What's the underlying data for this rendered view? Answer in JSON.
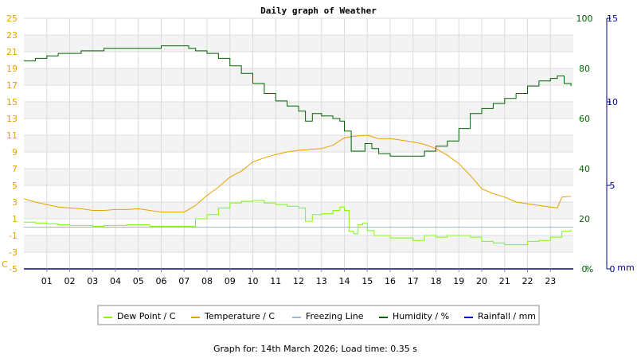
{
  "chart_data": {
    "type": "line",
    "title": "Daily graph of Weather",
    "x_ticks": [
      "01",
      "02",
      "03",
      "04",
      "05",
      "06",
      "07",
      "08",
      "09",
      "10",
      "11",
      "12",
      "13",
      "14",
      "15",
      "16",
      "17",
      "18",
      "19",
      "20",
      "21",
      "22",
      "23"
    ],
    "x_range": [
      0,
      24
    ],
    "left_axis": {
      "label": "C",
      "range": [
        -5,
        25
      ],
      "ticks": [
        "25",
        "23",
        "21",
        "19",
        "17",
        "15",
        "13",
        "11",
        "9",
        "7",
        "5",
        "3",
        "1",
        "-1",
        "-3",
        "-5"
      ],
      "color": "#e8a000"
    },
    "right_axis_humidity": {
      "label": "%",
      "range": [
        0,
        100
      ],
      "ticks": [
        "100",
        "80",
        "60",
        "40",
        "20",
        "0"
      ],
      "color": "#006400"
    },
    "right_axis_rain": {
      "label": "mm",
      "range": [
        0,
        15
      ],
      "ticks": [
        "15",
        "10",
        "5",
        "0"
      ],
      "color": "#00008b"
    },
    "grid": true,
    "legend_position": "bottom",
    "series": [
      {
        "name": "Dew Point / C",
        "axis": "left",
        "color": "#7cfc00",
        "points": [
          [
            0,
            0.6
          ],
          [
            0.5,
            0.5
          ],
          [
            1,
            0.4
          ],
          [
            1.5,
            0.3
          ],
          [
            2,
            0.2
          ],
          [
            2.5,
            0.2
          ],
          [
            3,
            0.1
          ],
          [
            3.5,
            0.2
          ],
          [
            4,
            0.2
          ],
          [
            4.5,
            0.3
          ],
          [
            5,
            0.3
          ],
          [
            5.5,
            0.1
          ],
          [
            6,
            0.1
          ],
          [
            6.5,
            0.1
          ],
          [
            7,
            0.1
          ],
          [
            7.5,
            1.0
          ],
          [
            8,
            1.5
          ],
          [
            8.5,
            2.3
          ],
          [
            9,
            2.9
          ],
          [
            9.5,
            3.1
          ],
          [
            10,
            3.2
          ],
          [
            10.5,
            2.9
          ],
          [
            11,
            2.7
          ],
          [
            11.5,
            2.5
          ],
          [
            12,
            2.3
          ],
          [
            12.3,
            0.7
          ],
          [
            12.6,
            1.5
          ],
          [
            13,
            1.6
          ],
          [
            13.5,
            2.0
          ],
          [
            13.8,
            2.4
          ],
          [
            14,
            2.0
          ],
          [
            14.2,
            -0.5
          ],
          [
            14.4,
            -0.8
          ],
          [
            14.6,
            0.3
          ],
          [
            14.8,
            0.5
          ],
          [
            15,
            -0.4
          ],
          [
            15.3,
            -1.0
          ],
          [
            15.6,
            -1.0
          ],
          [
            16,
            -1.3
          ],
          [
            16.5,
            -1.3
          ],
          [
            17,
            -1.6
          ],
          [
            17.5,
            -1.0
          ],
          [
            18,
            -1.2
          ],
          [
            18.5,
            -1.0
          ],
          [
            19,
            -1.0
          ],
          [
            19.5,
            -1.2
          ],
          [
            20,
            -1.7
          ],
          [
            20.5,
            -1.9
          ],
          [
            21,
            -2.1
          ],
          [
            21.5,
            -2.1
          ],
          [
            22,
            -1.7
          ],
          [
            22.5,
            -1.6
          ],
          [
            23,
            -1.2
          ],
          [
            23.5,
            -0.5
          ],
          [
            23.9,
            -0.3
          ]
        ]
      },
      {
        "name": "Temperature / C",
        "axis": "left",
        "color": "#e8a000",
        "points": [
          [
            0,
            3.4
          ],
          [
            0.5,
            3.0
          ],
          [
            1,
            2.7
          ],
          [
            1.5,
            2.4
          ],
          [
            2,
            2.3
          ],
          [
            2.5,
            2.2
          ],
          [
            3,
            2.0
          ],
          [
            3.5,
            2.0
          ],
          [
            4,
            2.1
          ],
          [
            4.5,
            2.1
          ],
          [
            5,
            2.2
          ],
          [
            5.5,
            2.0
          ],
          [
            6,
            1.8
          ],
          [
            6.5,
            1.8
          ],
          [
            7,
            1.8
          ],
          [
            7.5,
            2.6
          ],
          [
            8,
            3.8
          ],
          [
            8.5,
            4.8
          ],
          [
            9,
            6.0
          ],
          [
            9.5,
            6.7
          ],
          [
            10,
            7.8
          ],
          [
            10.5,
            8.3
          ],
          [
            11,
            8.7
          ],
          [
            11.5,
            9.0
          ],
          [
            12,
            9.2
          ],
          [
            12.5,
            9.3
          ],
          [
            13,
            9.4
          ],
          [
            13.5,
            9.8
          ],
          [
            14,
            10.7
          ],
          [
            14.5,
            10.9
          ],
          [
            15,
            11.0
          ],
          [
            15.5,
            10.6
          ],
          [
            16,
            10.6
          ],
          [
            16.5,
            10.4
          ],
          [
            17,
            10.2
          ],
          [
            17.5,
            9.9
          ],
          [
            18,
            9.4
          ],
          [
            18.5,
            8.6
          ],
          [
            19,
            7.6
          ],
          [
            19.5,
            6.2
          ],
          [
            20,
            4.6
          ],
          [
            20.5,
            4.0
          ],
          [
            21,
            3.6
          ],
          [
            21.5,
            3.0
          ],
          [
            22,
            2.8
          ],
          [
            22.5,
            2.6
          ],
          [
            23,
            2.4
          ],
          [
            23.3,
            2.3
          ],
          [
            23.5,
            3.6
          ],
          [
            23.9,
            3.7
          ]
        ]
      },
      {
        "name": "Freezing Line",
        "axis": "left",
        "color": "#9fb6cd",
        "points": [
          [
            0,
            0
          ],
          [
            24,
            0
          ]
        ]
      },
      {
        "name": "Humidity / %",
        "axis": "right_humidity",
        "color": "#006400",
        "points": [
          [
            0,
            83
          ],
          [
            0.5,
            84
          ],
          [
            1,
            85
          ],
          [
            1.5,
            86
          ],
          [
            2,
            86
          ],
          [
            2.5,
            87
          ],
          [
            3,
            87
          ],
          [
            3.5,
            88
          ],
          [
            4,
            88
          ],
          [
            4.5,
            88
          ],
          [
            5,
            88
          ],
          [
            5.5,
            88
          ],
          [
            6,
            89
          ],
          [
            6.5,
            89
          ],
          [
            7,
            89
          ],
          [
            7.2,
            88
          ],
          [
            7.5,
            87
          ],
          [
            8,
            86
          ],
          [
            8.5,
            84
          ],
          [
            9,
            81
          ],
          [
            9.5,
            78
          ],
          [
            10,
            74
          ],
          [
            10.5,
            70
          ],
          [
            11,
            67
          ],
          [
            11.5,
            65
          ],
          [
            12,
            63
          ],
          [
            12.3,
            59
          ],
          [
            12.6,
            62
          ],
          [
            13,
            61
          ],
          [
            13.5,
            60
          ],
          [
            13.8,
            59
          ],
          [
            14,
            55
          ],
          [
            14.3,
            47
          ],
          [
            14.6,
            47
          ],
          [
            14.9,
            50
          ],
          [
            15.2,
            48
          ],
          [
            15.5,
            46
          ],
          [
            16,
            45
          ],
          [
            16.5,
            45
          ],
          [
            17,
            45
          ],
          [
            17.5,
            47
          ],
          [
            18,
            49
          ],
          [
            18.5,
            51
          ],
          [
            19,
            56
          ],
          [
            19.5,
            62
          ],
          [
            20,
            64
          ],
          [
            20.5,
            66
          ],
          [
            21,
            68
          ],
          [
            21.5,
            70
          ],
          [
            22,
            73
          ],
          [
            22.5,
            75
          ],
          [
            23,
            76
          ],
          [
            23.3,
            77
          ],
          [
            23.6,
            74
          ],
          [
            23.9,
            73
          ]
        ]
      },
      {
        "name": "Rainfall / mm",
        "axis": "right_rain",
        "color": "#0000cd",
        "points": [
          [
            0,
            0
          ],
          [
            24,
            0
          ]
        ]
      }
    ]
  },
  "footer": {
    "text": "Graph for: 14th March 2026; Load time: 0.35 s"
  }
}
